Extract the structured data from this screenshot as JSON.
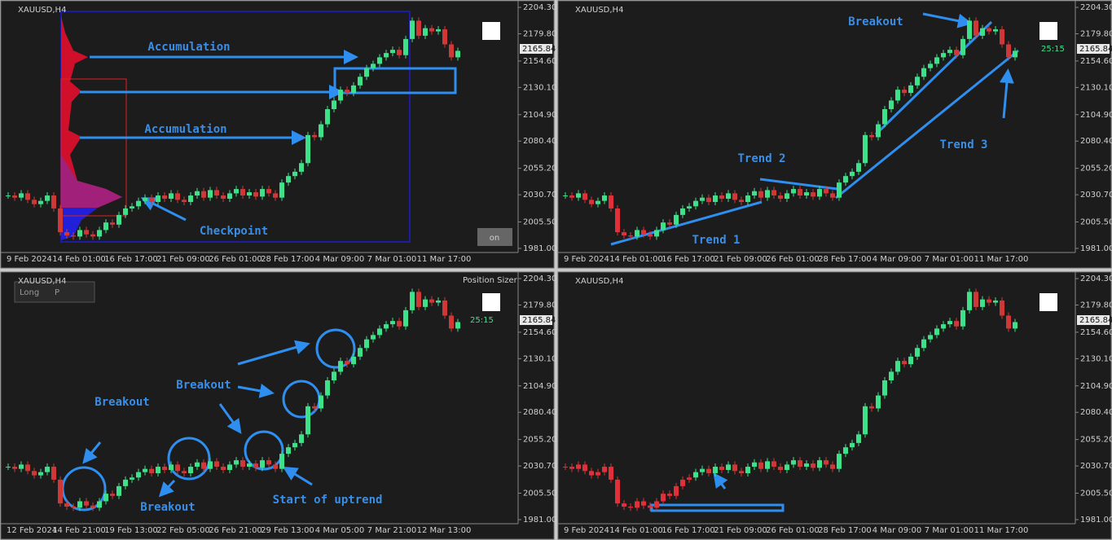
{
  "symbol": "XAUUSD,H4",
  "price_axis": {
    "ylim": [
      1977.2,
      2208.1
    ],
    "ticks": [
      {
        "value": 2204.3,
        "label": "2204.30"
      },
      {
        "value": 2179.8,
        "label": "2179.80"
      },
      {
        "value": 2154.6,
        "label": "2154.60"
      },
      {
        "value": 2130.1,
        "label": "2130.10"
      },
      {
        "value": 2104.9,
        "label": "2104.90"
      },
      {
        "value": 2080.4,
        "label": "2080.40"
      },
      {
        "value": 2055.2,
        "label": "2055.20"
      },
      {
        "value": 2030.7,
        "label": "2030.70"
      },
      {
        "value": 2005.5,
        "label": "2005.50"
      },
      {
        "value": 1981,
        "label": "1981.00"
      }
    ],
    "current": 2165.84
  },
  "closes": [
    2030,
    2028,
    2032,
    2026,
    2022,
    2025,
    2030,
    2018,
    1996,
    1993,
    1992,
    1998,
    1994,
    1992,
    1998,
    2005,
    2003,
    2012,
    2018,
    2020,
    2025,
    2028,
    2024,
    2030,
    2027,
    2032,
    2026,
    2024,
    2030,
    2034,
    2028,
    2035,
    2030,
    2027,
    2032,
    2036,
    2030,
    2033,
    2029,
    2036,
    2032,
    2028,
    2042,
    2048,
    2052,
    2060,
    2086,
    2084,
    2096,
    2110,
    2118,
    2128,
    2125,
    2132,
    2140,
    2148,
    2152,
    2158,
    2162,
    2165,
    2160,
    2175,
    2192,
    2178,
    2185,
    2182,
    2184,
    2170,
    2158,
    2164
  ],
  "panels": [
    {
      "time_labels": [
        "9 Feb 2024",
        "14 Feb 01:00",
        "16 Feb 17:00",
        "21 Feb 09:00",
        "26 Feb 01:00",
        "28 Feb 17:00",
        "4 Mar 09:00",
        "7 Mar 01:00",
        "11 Mar 17:00"
      ],
      "annotations": [
        "Accumulation",
        "Accumulation",
        "Checkpoint"
      ],
      "button": "on"
    },
    {
      "time_labels": [
        "9 Feb 2024",
        "14 Feb 01:00",
        "16 Feb 17:00",
        "21 Feb 09:00",
        "26 Feb 01:00",
        "28 Feb 17:00",
        "4 Mar 09:00",
        "7 Mar 01:00",
        "11 Mar 17:00"
      ],
      "annotations": [
        "Breakout",
        "Trend 2",
        "Trend 3",
        "Trend 1"
      ],
      "timer": "25:15"
    },
    {
      "time_labels": [
        "12 Feb 2024",
        "14 Feb 21:00",
        "19 Feb 13:00",
        "22 Feb 05:00",
        "26 Feb 21:00",
        "29 Feb 13:00",
        "4 Mar 05:00",
        "7 Mar 21:00",
        "12 Mar 13:00"
      ],
      "annotations": [
        "Breakout",
        "Breakout",
        "Breakout",
        "Start of uptrend"
      ],
      "timer": "25:15",
      "position_sizer": {
        "title": "Position Sizer",
        "mode": "Long",
        "tab": "P"
      }
    },
    {
      "time_labels": [
        "9 Feb 2024",
        "14 Feb 01:00",
        "16 Feb 17:00",
        "21 Feb 09:00",
        "26 Feb 01:00",
        "28 Feb 17:00",
        "4 Mar 09:00",
        "7 Mar 01:00",
        "11 Mar 17:00"
      ],
      "annotations": []
    }
  ]
}
